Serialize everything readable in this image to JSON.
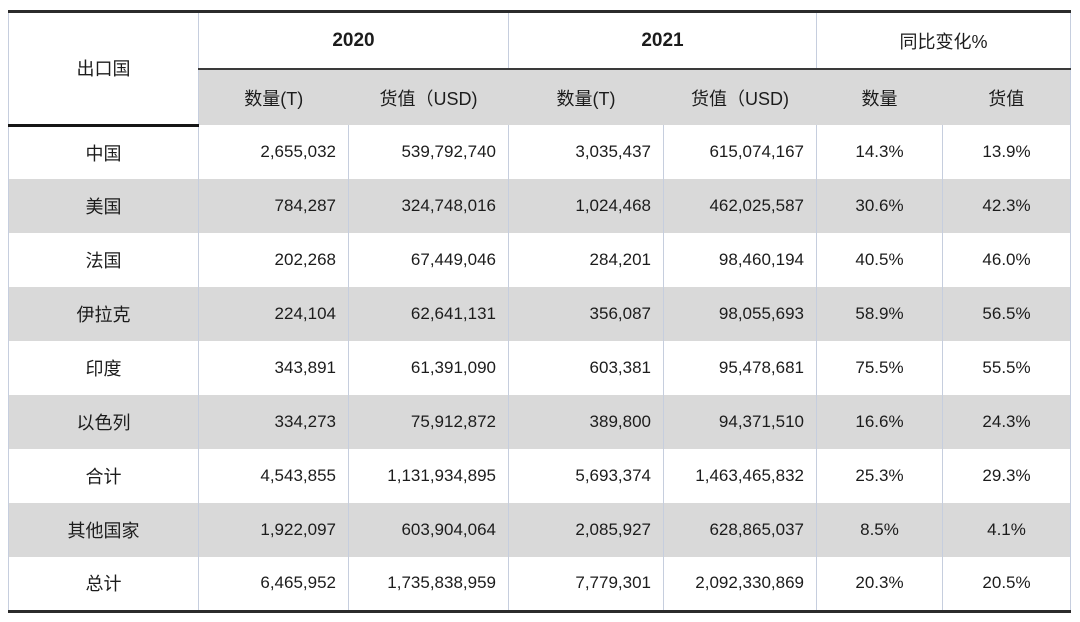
{
  "page": {
    "background": "#ffffff"
  },
  "table": {
    "corner_header": "出口国",
    "year_groups": [
      {
        "label": "2020"
      },
      {
        "label": "2021"
      },
      {
        "label": "同比变化%"
      }
    ],
    "sub_headers": [
      "数量(T)",
      "货值（USD)",
      "数量(T)",
      "货值（USD)",
      "数量",
      "货值"
    ],
    "rows": [
      {
        "country": "中国",
        "cells": [
          "2,655,032",
          "539,792,740",
          "3,035,437",
          "615,074,167",
          "14.3%",
          "13.9%"
        ]
      },
      {
        "country": "美国",
        "cells": [
          "784,287",
          "324,748,016",
          "1,024,468",
          "462,025,587",
          "30.6%",
          "42.3%"
        ]
      },
      {
        "country": "法国",
        "cells": [
          "202,268",
          "67,449,046",
          "284,201",
          "98,460,194",
          "40.5%",
          "46.0%"
        ]
      },
      {
        "country": "伊拉克",
        "cells": [
          "224,104",
          "62,641,131",
          "356,087",
          "98,055,693",
          "58.9%",
          "56.5%"
        ]
      },
      {
        "country": "印度",
        "cells": [
          "343,891",
          "61,391,090",
          "603,381",
          "95,478,681",
          "75.5%",
          "55.5%"
        ]
      },
      {
        "country": "以色列",
        "cells": [
          "334,273",
          "75,912,872",
          "389,800",
          "94,371,510",
          "16.6%",
          "24.3%"
        ]
      },
      {
        "country": "合计",
        "cells": [
          "4,543,855",
          "1,131,934,895",
          "5,693,374",
          "1,463,465,832",
          "25.3%",
          "29.3%"
        ]
      },
      {
        "country": "其他国家",
        "cells": [
          "1,922,097",
          "603,904,064",
          "2,085,927",
          "628,865,037",
          "8.5%",
          "4.1%"
        ]
      },
      {
        "country": "总计",
        "cells": [
          "6,465,952",
          "1,735,838,959",
          "7,779,301",
          "2,092,330,869",
          "20.3%",
          "20.5%"
        ]
      }
    ],
    "colors": {
      "stripe": "#d9d9d9",
      "grid_line": "#c6cede",
      "frame_line": "#2b2b2b",
      "header_rule": "#3a3a3a",
      "text": "#1c1c1c"
    }
  },
  "chart_data": {
    "type": "table",
    "title": "",
    "column_groups": [
      "2020",
      "2021",
      "同比变化%"
    ],
    "columns": [
      "出口国",
      "2020 数量(T)",
      "2020 货值（USD)",
      "2021 数量(T)",
      "2021 货值（USD)",
      "同比变化% 数量",
      "同比变化% 货值"
    ],
    "rows": [
      [
        "中国",
        "2,655,032",
        "539,792,740",
        "3,035,437",
        "615,074,167",
        "14.3%",
        "13.9%"
      ],
      [
        "美国",
        "784,287",
        "324,748,016",
        "1,024,468",
        "462,025,587",
        "30.6%",
        "42.3%"
      ],
      [
        "法国",
        "202,268",
        "67,449,046",
        "284,201",
        "98,460,194",
        "40.5%",
        "46.0%"
      ],
      [
        "伊拉克",
        "224,104",
        "62,641,131",
        "356,087",
        "98,055,693",
        "58.9%",
        "56.5%"
      ],
      [
        "印度",
        "343,891",
        "61,391,090",
        "603,381",
        "95,478,681",
        "75.5%",
        "55.5%"
      ],
      [
        "以色列",
        "334,273",
        "75,912,872",
        "389,800",
        "94,371,510",
        "16.6%",
        "24.3%"
      ],
      [
        "合计",
        "4,543,855",
        "1,131,934,895",
        "5,693,374",
        "1,463,465,832",
        "25.3%",
        "29.3%"
      ],
      [
        "其他国家",
        "1,922,097",
        "603,904,064",
        "2,085,927",
        "628,865,037",
        "8.5%",
        "4.1%"
      ],
      [
        "总计",
        "6,465,952",
        "1,735,838,959",
        "7,779,301",
        "2,092,330,869",
        "20.3%",
        "20.5%"
      ]
    ]
  }
}
